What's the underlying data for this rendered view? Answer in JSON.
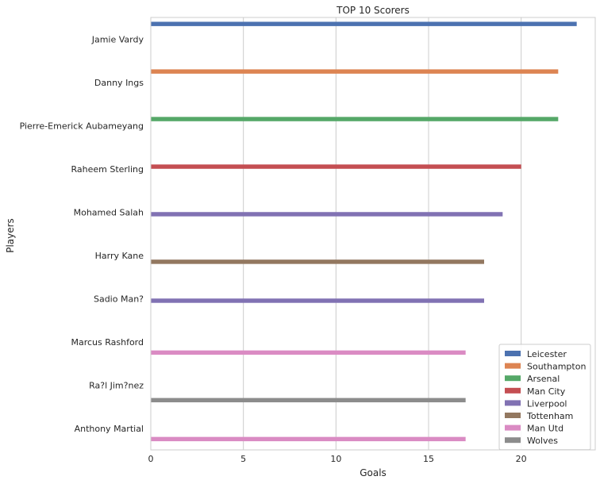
{
  "chart_data": {
    "type": "bar",
    "orientation": "horizontal",
    "title": "TOP 10 Scorers",
    "xlabel": "Goals",
    "ylabel": "Players",
    "xlim": [
      0,
      24
    ],
    "xticks": [
      0,
      5,
      10,
      15,
      20
    ],
    "grid": "x",
    "legend_position": "bottom-right",
    "categories": [
      "Jamie Vardy",
      "Danny Ings",
      "Pierre-Emerick Aubameyang",
      "Raheem Sterling",
      "Mohamed Salah",
      "Harry Kane",
      "Sadio Man?",
      "Marcus Rashford",
      "Ra?l Jim?nez",
      "Anthony Martial"
    ],
    "series": [
      {
        "name": "Leicester",
        "color": "#4c72b0",
        "values": [
          23,
          null,
          null,
          null,
          null,
          null,
          null,
          null,
          null,
          null
        ]
      },
      {
        "name": "Southampton",
        "color": "#dd8452",
        "values": [
          null,
          22,
          null,
          null,
          null,
          null,
          null,
          null,
          null,
          null
        ]
      },
      {
        "name": "Arsenal",
        "color": "#55a868",
        "values": [
          null,
          null,
          22,
          null,
          null,
          null,
          null,
          null,
          null,
          null
        ]
      },
      {
        "name": "Man City",
        "color": "#c44e52",
        "values": [
          null,
          null,
          null,
          20,
          null,
          null,
          null,
          null,
          null,
          null
        ]
      },
      {
        "name": "Liverpool",
        "color": "#8172b3",
        "values": [
          null,
          null,
          null,
          null,
          19,
          null,
          18,
          null,
          null,
          null
        ]
      },
      {
        "name": "Tottenham",
        "color": "#937860",
        "values": [
          null,
          null,
          null,
          null,
          null,
          18,
          null,
          null,
          null,
          null
        ]
      },
      {
        "name": "Man Utd",
        "color": "#da8bc3",
        "values": [
          null,
          null,
          null,
          null,
          null,
          null,
          null,
          17,
          null,
          17
        ]
      },
      {
        "name": "Wolves",
        "color": "#8c8c8c",
        "values": [
          null,
          null,
          null,
          null,
          null,
          null,
          null,
          null,
          17,
          null
        ]
      }
    ]
  }
}
